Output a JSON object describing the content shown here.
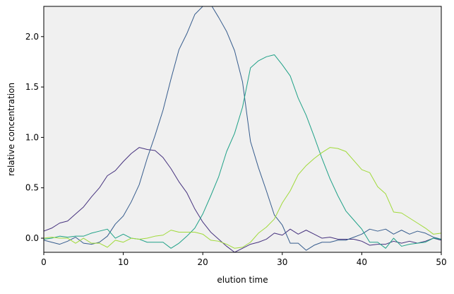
{
  "chart_data": {
    "type": "line",
    "title": "",
    "xlabel": "elution time",
    "ylabel": "relative concentration",
    "xlim": [
      0,
      50
    ],
    "ylim": [
      -0.14,
      2.3
    ],
    "xticks": [
      0,
      10,
      20,
      30,
      40,
      50
    ],
    "yticks": [
      0.0,
      0.5,
      1.0,
      1.5,
      2.0
    ],
    "xtick_labels": [
      "0",
      "10",
      "20",
      "30",
      "40",
      "50"
    ],
    "ytick_labels": [
      "0.0",
      "0.5",
      "1.0",
      "1.5",
      "2.0"
    ],
    "grid": false,
    "background": "#f0f0f0",
    "x": [
      0,
      1,
      2,
      3,
      4,
      5,
      6,
      7,
      8,
      9,
      10,
      11,
      12,
      13,
      14,
      15,
      16,
      17,
      18,
      19,
      20,
      21,
      22,
      23,
      24,
      25,
      26,
      27,
      28,
      29,
      30,
      31,
      32,
      33,
      34,
      35,
      36,
      37,
      38,
      39,
      40,
      41,
      42,
      43,
      44,
      45,
      46,
      47,
      48,
      49,
      50
    ],
    "series": [
      {
        "color": "#46327e",
        "values": [
          0.07,
          0.1,
          0.15,
          0.17,
          0.24,
          0.31,
          0.41,
          0.5,
          0.62,
          0.67,
          0.76,
          0.84,
          0.9,
          0.88,
          0.87,
          0.8,
          0.69,
          0.56,
          0.45,
          0.29,
          0.16,
          0.06,
          -0.01,
          -0.08,
          -0.14,
          -0.1,
          -0.06,
          -0.04,
          -0.01,
          0.05,
          0.03,
          0.09,
          0.04,
          0.08,
          0.04,
          0.0,
          0.01,
          -0.01,
          -0.01,
          -0.01,
          -0.03,
          -0.07,
          -0.06,
          -0.06,
          -0.03,
          -0.05,
          -0.03,
          -0.05,
          -0.03,
          0.0,
          -0.02
        ]
      },
      {
        "color": "#365c8d",
        "values": [
          -0.02,
          -0.04,
          -0.06,
          -0.03,
          0.01,
          -0.05,
          -0.06,
          -0.04,
          0.02,
          0.14,
          0.22,
          0.36,
          0.53,
          0.79,
          1.02,
          1.27,
          1.58,
          1.87,
          2.03,
          2.22,
          2.3,
          2.32,
          2.19,
          2.05,
          1.86,
          1.55,
          0.96,
          0.7,
          0.47,
          0.23,
          0.13,
          -0.05,
          -0.05,
          -0.12,
          -0.07,
          -0.04,
          -0.04,
          -0.02,
          -0.02,
          0.01,
          0.04,
          0.09,
          0.07,
          0.09,
          0.04,
          0.08,
          0.04,
          0.07,
          0.05,
          0.01,
          -0.01
        ]
      },
      {
        "color": "#1fa187",
        "values": [
          -0.01,
          0.0,
          0.02,
          0.01,
          0.02,
          0.02,
          0.05,
          0.07,
          0.09,
          0.0,
          0.04,
          0.0,
          -0.01,
          -0.04,
          -0.04,
          -0.04,
          -0.1,
          -0.05,
          0.02,
          0.1,
          0.24,
          0.42,
          0.61,
          0.86,
          1.04,
          1.3,
          1.69,
          1.76,
          1.8,
          1.82,
          1.72,
          1.61,
          1.39,
          1.22,
          1.01,
          0.79,
          0.59,
          0.42,
          0.27,
          0.18,
          0.09,
          -0.04,
          -0.04,
          -0.1,
          0.0,
          -0.08,
          -0.06,
          -0.05,
          -0.04,
          0.0,
          -0.01
        ]
      },
      {
        "color": "#a0da39",
        "values": [
          0.0,
          0.01,
          0.0,
          0.0,
          -0.05,
          0.0,
          -0.05,
          -0.05,
          -0.09,
          -0.02,
          -0.04,
          0.0,
          -0.01,
          0.0,
          0.02,
          0.03,
          0.08,
          0.06,
          0.06,
          0.06,
          0.04,
          -0.02,
          -0.03,
          -0.06,
          -0.1,
          -0.09,
          -0.04,
          0.05,
          0.11,
          0.19,
          0.35,
          0.47,
          0.63,
          0.72,
          0.79,
          0.85,
          0.9,
          0.89,
          0.86,
          0.77,
          0.68,
          0.65,
          0.51,
          0.44,
          0.26,
          0.25,
          0.2,
          0.15,
          0.1,
          0.04,
          0.05
        ]
      }
    ]
  }
}
